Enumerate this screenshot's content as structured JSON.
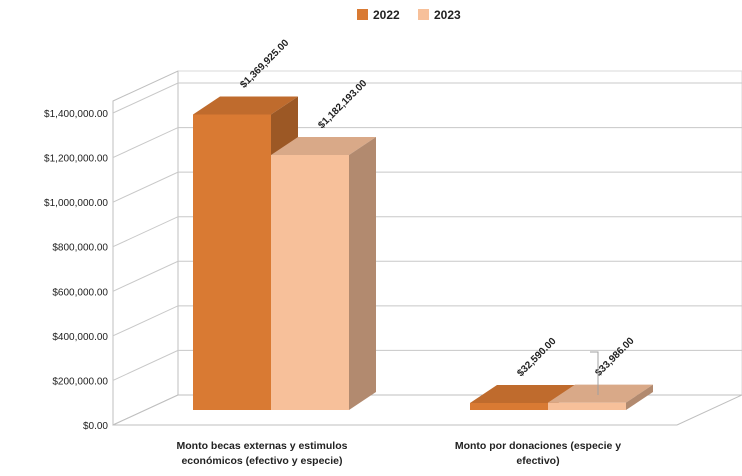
{
  "chart_data": {
    "type": "bar",
    "categories": [
      "Monto becas externas y estimulos económicos (efectivo y especie)",
      "Monto por donaciones (especie y efectivo)"
    ],
    "category_lines": [
      [
        "Monto becas externas y estimulos",
        "económicos (efectivo y especie)"
      ],
      [
        "Monto por donaciones (especie y",
        "efectivo)"
      ]
    ],
    "series": [
      {
        "name": "2022",
        "values": [
          1369925,
          32590
        ],
        "labels": [
          "$1,369,925.00",
          "$32,590.00"
        ],
        "color": "#d97a33"
      },
      {
        "name": "2023",
        "values": [
          1182193,
          33986
        ],
        "labels": [
          "$1,182,193.00",
          "$33,986.00"
        ],
        "color": "#f7c09a"
      }
    ],
    "yticks": [
      "$0.00",
      "$200,000.00",
      "$400,000.00",
      "$600,000.00",
      "$800,000.00",
      "$1,000,000.00",
      "$1,200,000.00",
      "$1,400,000.00"
    ],
    "ylim": [
      0,
      1400000
    ],
    "title": "",
    "xlabel": "",
    "ylabel": "",
    "grid": true,
    "legend_position": "top"
  }
}
